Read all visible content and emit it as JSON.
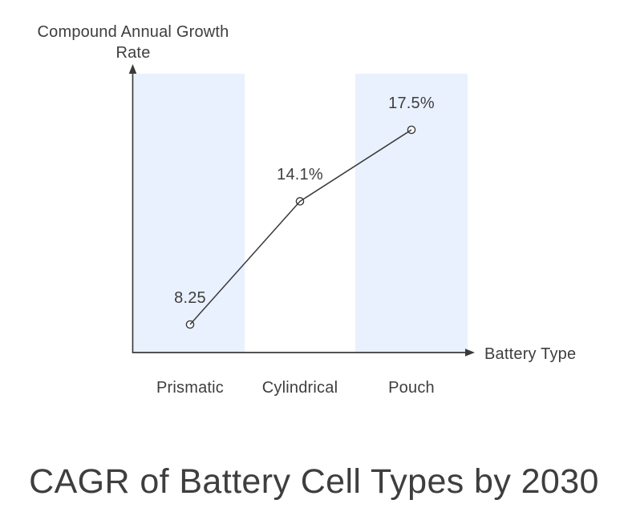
{
  "chart_data": {
    "type": "line",
    "title": "CAGR of Battery Cell Types by 2030",
    "ylabel": "Compound Annual Growth Rate",
    "xlabel": "Battery Type",
    "categories": [
      "Prismatic",
      "Cylindrical",
      "Pouch"
    ],
    "values": [
      8.25,
      14.1,
      17.5
    ],
    "point_labels": [
      "8.25",
      "14.1%",
      "17.5%"
    ],
    "highlighted_categories": [
      "Prismatic",
      "Pouch"
    ],
    "grid": false,
    "legend": false,
    "axis_ticks": "none",
    "colors": {
      "band": "#e9f1fe",
      "line": "#3a3a3a",
      "text": "#3e3e3e",
      "background": "#ffffff",
      "marker_fill": "#ffffff"
    }
  }
}
